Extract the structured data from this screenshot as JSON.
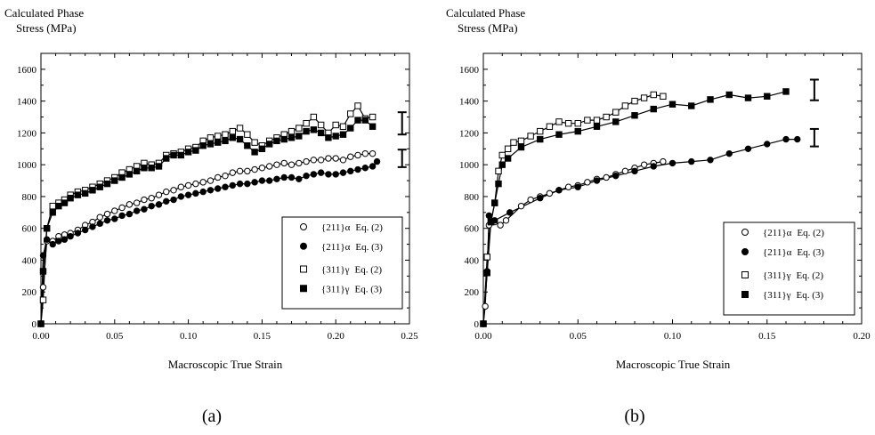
{
  "chart_data": [
    {
      "type": "scatter",
      "panel_label": "(a)",
      "ylabel_line1": "Calculated Phase",
      "ylabel_line2": "Stress (MPa)",
      "xlabel": "Macroscopic True Strain",
      "xlim": [
        0,
        0.25
      ],
      "ylim": [
        0,
        1700
      ],
      "x_ticks": [
        "0.00",
        "0.05",
        "0.10",
        "0.15",
        "0.20",
        "0.25"
      ],
      "y_ticks": [
        "0",
        "200",
        "400",
        "600",
        "800",
        "1000",
        "1200",
        "1400",
        "1600"
      ],
      "legend_position": "lower-right",
      "error_bars": [
        {
          "x": 0.245,
          "y": 1260,
          "half_height": 70
        },
        {
          "x": 0.245,
          "y": 1040,
          "half_height": 55
        }
      ],
      "series": [
        {
          "label_prefix": "{211}",
          "label_symbol": "α",
          "label_eq": "Eq. (2)",
          "marker": "circle-open",
          "x": [
            0,
            0.0015,
            0.004,
            0.008,
            0.012,
            0.016,
            0.02,
            0.025,
            0.03,
            0.035,
            0.04,
            0.045,
            0.05,
            0.055,
            0.06,
            0.065,
            0.07,
            0.075,
            0.08,
            0.085,
            0.09,
            0.095,
            0.1,
            0.105,
            0.11,
            0.115,
            0.12,
            0.125,
            0.13,
            0.135,
            0.14,
            0.145,
            0.15,
            0.155,
            0.16,
            0.165,
            0.17,
            0.175,
            0.18,
            0.185,
            0.19,
            0.195,
            0.2,
            0.205,
            0.21,
            0.215,
            0.22,
            0.225
          ],
          "y": [
            0,
            230,
            520,
            520,
            550,
            560,
            570,
            590,
            620,
            640,
            670,
            690,
            710,
            730,
            750,
            760,
            780,
            790,
            810,
            830,
            840,
            860,
            870,
            880,
            890,
            900,
            920,
            930,
            950,
            960,
            960,
            970,
            980,
            990,
            1000,
            1010,
            1000,
            1010,
            1020,
            1030,
            1030,
            1040,
            1040,
            1030,
            1050,
            1060,
            1070,
            1070
          ]
        },
        {
          "label_prefix": "{211}",
          "label_symbol": "α",
          "label_eq": "Eq. (3)",
          "marker": "circle-filled",
          "x": [
            0,
            0.0015,
            0.004,
            0.008,
            0.012,
            0.016,
            0.02,
            0.025,
            0.03,
            0.035,
            0.04,
            0.045,
            0.05,
            0.055,
            0.06,
            0.065,
            0.07,
            0.075,
            0.08,
            0.085,
            0.09,
            0.095,
            0.1,
            0.105,
            0.11,
            0.115,
            0.12,
            0.125,
            0.13,
            0.135,
            0.14,
            0.145,
            0.15,
            0.155,
            0.16,
            0.165,
            0.17,
            0.175,
            0.18,
            0.185,
            0.19,
            0.195,
            0.2,
            0.205,
            0.21,
            0.215,
            0.22,
            0.225,
            0.228
          ],
          "y": [
            0,
            430,
            530,
            500,
            520,
            530,
            550,
            570,
            590,
            610,
            630,
            650,
            660,
            680,
            690,
            710,
            720,
            740,
            750,
            770,
            780,
            800,
            810,
            820,
            830,
            840,
            850,
            860,
            870,
            880,
            880,
            890,
            900,
            900,
            910,
            920,
            920,
            910,
            930,
            940,
            950,
            940,
            940,
            950,
            960,
            970,
            980,
            990,
            1020
          ]
        },
        {
          "label_prefix": "{311}",
          "label_symbol": "γ",
          "label_eq": "Eq. (2)",
          "marker": "square-open",
          "x": [
            0,
            0.0015,
            0.004,
            0.008,
            0.012,
            0.016,
            0.02,
            0.025,
            0.03,
            0.035,
            0.04,
            0.045,
            0.05,
            0.055,
            0.06,
            0.065,
            0.07,
            0.075,
            0.08,
            0.085,
            0.09,
            0.095,
            0.1,
            0.105,
            0.11,
            0.115,
            0.12,
            0.125,
            0.13,
            0.135,
            0.14,
            0.145,
            0.15,
            0.155,
            0.16,
            0.165,
            0.17,
            0.175,
            0.18,
            0.185,
            0.19,
            0.195,
            0.2,
            0.205,
            0.21,
            0.215,
            0.22,
            0.225
          ],
          "y": [
            0,
            150,
            600,
            740,
            760,
            780,
            810,
            830,
            840,
            860,
            880,
            900,
            920,
            950,
            970,
            990,
            1010,
            1000,
            1010,
            1060,
            1070,
            1080,
            1100,
            1110,
            1150,
            1170,
            1180,
            1190,
            1210,
            1230,
            1190,
            1140,
            1120,
            1150,
            1170,
            1190,
            1210,
            1230,
            1260,
            1300,
            1250,
            1200,
            1250,
            1240,
            1320,
            1370,
            1290,
            1300
          ]
        },
        {
          "label_prefix": "{311}",
          "label_symbol": "γ",
          "label_eq": "Eq. (3)",
          "marker": "square-filled",
          "x": [
            0,
            0.0015,
            0.004,
            0.008,
            0.012,
            0.016,
            0.02,
            0.025,
            0.03,
            0.035,
            0.04,
            0.045,
            0.05,
            0.055,
            0.06,
            0.065,
            0.07,
            0.075,
            0.08,
            0.085,
            0.09,
            0.095,
            0.1,
            0.105,
            0.11,
            0.115,
            0.12,
            0.125,
            0.13,
            0.135,
            0.14,
            0.145,
            0.15,
            0.155,
            0.16,
            0.165,
            0.17,
            0.175,
            0.18,
            0.185,
            0.19,
            0.195,
            0.2,
            0.205,
            0.21,
            0.215,
            0.22,
            0.225
          ],
          "y": [
            0,
            330,
            600,
            700,
            740,
            760,
            790,
            810,
            820,
            840,
            860,
            880,
            900,
            920,
            940,
            960,
            980,
            980,
            990,
            1040,
            1060,
            1060,
            1080,
            1090,
            1120,
            1130,
            1140,
            1150,
            1170,
            1160,
            1120,
            1080,
            1100,
            1130,
            1150,
            1160,
            1170,
            1180,
            1210,
            1220,
            1200,
            1170,
            1180,
            1190,
            1230,
            1280,
            1280,
            1240
          ]
        }
      ]
    },
    {
      "type": "scatter",
      "panel_label": "(b)",
      "ylabel_line1": "Calculated Phase",
      "ylabel_line2": "Stress (MPa)",
      "xlabel": "Macroscopic True Strain",
      "xlim": [
        0,
        0.2
      ],
      "ylim": [
        0,
        1700
      ],
      "x_ticks": [
        "0.00",
        "0.05",
        "0.10",
        "0.15",
        "0.20"
      ],
      "y_ticks": [
        "0",
        "200",
        "400",
        "600",
        "800",
        "1000",
        "1200",
        "1400",
        "1600"
      ],
      "legend_position": "lower-right",
      "error_bars": [
        {
          "x": 0.175,
          "y": 1470,
          "half_height": 65
        },
        {
          "x": 0.175,
          "y": 1170,
          "half_height": 55
        }
      ],
      "series": [
        {
          "label_prefix": "{211}",
          "label_symbol": "α",
          "label_eq": "Eq. (2)",
          "marker": "circle-open",
          "x": [
            0,
            0.001,
            0.003,
            0.006,
            0.009,
            0.012,
            0.02,
            0.025,
            0.03,
            0.035,
            0.04,
            0.045,
            0.05,
            0.055,
            0.06,
            0.065,
            0.07,
            0.075,
            0.08,
            0.085,
            0.09,
            0.095
          ],
          "y": [
            0,
            110,
            620,
            640,
            620,
            650,
            740,
            780,
            800,
            820,
            840,
            860,
            870,
            890,
            910,
            920,
            940,
            960,
            980,
            1000,
            1010,
            1020
          ]
        },
        {
          "label_prefix": "{211}",
          "label_symbol": "α",
          "label_eq": "Eq. (3)",
          "marker": "circle-filled",
          "x": [
            0,
            0.002,
            0.003,
            0.006,
            0.014,
            0.03,
            0.04,
            0.05,
            0.06,
            0.07,
            0.08,
            0.09,
            0.1,
            0.11,
            0.12,
            0.13,
            0.14,
            0.15,
            0.16,
            0.166
          ],
          "y": [
            0,
            330,
            680,
            650,
            700,
            790,
            840,
            860,
            900,
            930,
            960,
            990,
            1010,
            1020,
            1030,
            1070,
            1100,
            1130,
            1160,
            1160
          ]
        },
        {
          "label_prefix": "{311}",
          "label_symbol": "γ",
          "label_eq": "Eq. (2)",
          "marker": "square-open",
          "x": [
            0,
            0.002,
            0.004,
            0.006,
            0.008,
            0.01,
            0.013,
            0.016,
            0.02,
            0.025,
            0.03,
            0.035,
            0.04,
            0.045,
            0.05,
            0.055,
            0.06,
            0.065,
            0.07,
            0.075,
            0.08,
            0.085,
            0.09,
            0.095
          ],
          "y": [
            0,
            420,
            640,
            760,
            960,
            1060,
            1100,
            1140,
            1150,
            1180,
            1210,
            1240,
            1270,
            1260,
            1260,
            1280,
            1280,
            1300,
            1330,
            1370,
            1400,
            1420,
            1440,
            1430
          ]
        },
        {
          "label_prefix": "{311}",
          "label_symbol": "γ",
          "label_eq": "Eq. (3)",
          "marker": "square-filled",
          "x": [
            0,
            0.002,
            0.004,
            0.006,
            0.008,
            0.01,
            0.013,
            0.02,
            0.03,
            0.04,
            0.05,
            0.06,
            0.07,
            0.08,
            0.09,
            0.1,
            0.11,
            0.12,
            0.13,
            0.14,
            0.15,
            0.16
          ],
          "y": [
            0,
            320,
            640,
            760,
            880,
            1000,
            1040,
            1110,
            1160,
            1190,
            1210,
            1240,
            1270,
            1310,
            1350,
            1380,
            1370,
            1410,
            1440,
            1420,
            1430,
            1460
          ]
        }
      ]
    }
  ]
}
